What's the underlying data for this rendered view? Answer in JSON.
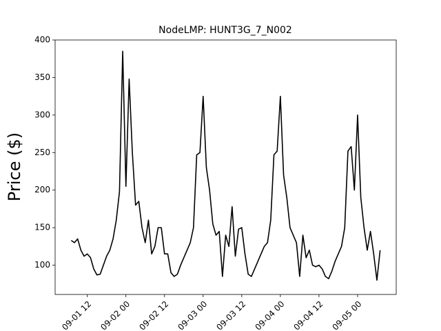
{
  "chart_data": {
    "type": "line",
    "title": "NodeLMP: HUNT3G_7_N002",
    "y_label": "Price ($)",
    "x": [
      "09-01 07",
      "09-01 08",
      "09-01 09",
      "09-01 10",
      "09-01 11",
      "09-01 12",
      "09-01 13",
      "09-01 14",
      "09-01 15",
      "09-01 16",
      "09-01 17",
      "09-01 18",
      "09-01 19",
      "09-01 20",
      "09-01 21",
      "09-01 22",
      "09-01 23",
      "09-02 00",
      "09-02 01",
      "09-02 02",
      "09-02 03",
      "09-02 04",
      "09-02 05",
      "09-02 06",
      "09-02 07",
      "09-02 08",
      "09-02 09",
      "09-02 10",
      "09-02 11",
      "09-02 12",
      "09-02 13",
      "09-02 14",
      "09-02 15",
      "09-02 16",
      "09-02 17",
      "09-02 18",
      "09-02 19",
      "09-02 20",
      "09-02 21",
      "09-02 22",
      "09-02 23",
      "09-03 00",
      "09-03 01",
      "09-03 02",
      "09-03 03",
      "09-03 04",
      "09-03 05",
      "09-03 06",
      "09-03 07",
      "09-03 08",
      "09-03 09",
      "09-03 10",
      "09-03 11",
      "09-03 12",
      "09-03 13",
      "09-03 14",
      "09-03 15",
      "09-03 16",
      "09-03 17",
      "09-03 18",
      "09-03 19",
      "09-03 20",
      "09-03 21",
      "09-03 22",
      "09-03 23",
      "09-04 00",
      "09-04 01",
      "09-04 02",
      "09-04 03",
      "09-04 04",
      "09-04 05",
      "09-04 06",
      "09-04 07",
      "09-04 08",
      "09-04 09",
      "09-04 10",
      "09-04 11",
      "09-04 12",
      "09-04 13",
      "09-04 14",
      "09-04 15",
      "09-04 16",
      "09-04 17",
      "09-04 18",
      "09-04 19",
      "09-04 20",
      "09-04 21",
      "09-04 22",
      "09-04 23",
      "09-05 00",
      "09-05 01",
      "09-05 02",
      "09-05 03",
      "09-05 04",
      "09-05 05",
      "09-05 06",
      "09-05 07"
    ],
    "series": [
      {
        "name": "NodeLMP",
        "color": "#000000",
        "values": [
          133,
          130,
          135,
          120,
          112,
          115,
          110,
          95,
          87,
          88,
          100,
          112,
          120,
          135,
          160,
          198,
          385,
          205,
          348,
          250,
          180,
          185,
          150,
          130,
          160,
          115,
          125,
          150,
          150,
          115,
          115,
          90,
          85,
          88,
          100,
          110,
          120,
          130,
          150,
          247,
          250,
          325,
          230,
          200,
          155,
          140,
          145,
          85,
          140,
          125,
          178,
          112,
          148,
          150,
          115,
          88,
          85,
          95,
          105,
          115,
          125,
          130,
          160,
          247,
          252,
          325,
          220,
          190,
          150,
          140,
          130,
          85,
          140,
          110,
          120,
          100,
          98,
          100,
          95,
          85,
          82,
          92,
          105,
          115,
          125,
          150,
          252,
          258,
          200,
          300,
          190,
          150,
          120,
          145,
          115,
          80,
          120
        ]
      }
    ],
    "xlim": [
      "09-01 02",
      "09-05 12"
    ],
    "xticks": [
      "09-01 12",
      "09-02 00",
      "09-02 12",
      "09-03 00",
      "09-03 12",
      "09-04 00",
      "09-04 12",
      "09-05 00"
    ],
    "ylim": [
      61,
      400
    ],
    "yticks": [
      100,
      150,
      200,
      250,
      300,
      350,
      400
    ]
  }
}
